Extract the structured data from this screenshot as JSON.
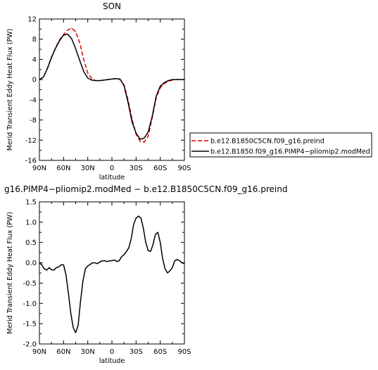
{
  "chart_data": [
    {
      "type": "line",
      "title": "SON",
      "xlabel": "latitude",
      "ylabel": "Merid Transient Eddy Heat Flux (PW)",
      "x": [
        90,
        85,
        80,
        75,
        70,
        65,
        60,
        55,
        50,
        45,
        40,
        35,
        30,
        25,
        20,
        15,
        10,
        5,
        0,
        -5,
        -10,
        -15,
        -20,
        -25,
        -30,
        -35,
        -40,
        -45,
        -50,
        -55,
        -60,
        -65,
        -70,
        -75,
        -80,
        -85,
        -90
      ],
      "xticks": [
        90,
        60,
        30,
        0,
        -30,
        -60,
        -90
      ],
      "xticklabels": [
        "90N",
        "60N",
        "30N",
        "0",
        "30S",
        "60S",
        "90S"
      ],
      "xlim": [
        90,
        -90
      ],
      "ylim": [
        -16,
        12
      ],
      "yticks": [
        -16,
        -12,
        -8,
        -4,
        0,
        4,
        8,
        12
      ],
      "yticklabels": [
        "-16",
        "-12",
        "-8",
        "-4",
        "0",
        "4",
        "8",
        "12"
      ],
      "legend_position": "right",
      "colors": {
        "axes": "#000000",
        "series_red": "#dd0000",
        "series_black": "#000000"
      },
      "series": [
        {
          "name": "b.e12.B1850C5CN.f09_g16.preind",
          "color": "#dd0000",
          "dash": "dashed",
          "values": [
            0,
            0.5,
            2.3,
            4.5,
            6.3,
            7.9,
            8.9,
            9.8,
            10.2,
            9.5,
            7.3,
            4.0,
            1.3,
            0.2,
            -0.2,
            -0.2,
            -0.1,
            0,
            0.1,
            0.2,
            0,
            -1.0,
            -4.0,
            -7.8,
            -10.8,
            -12.2,
            -12.4,
            -11.2,
            -7.6,
            -3.6,
            -1.6,
            -0.8,
            -0.3,
            -0.1,
            0,
            0,
            0
          ]
        },
        {
          "name": "b.e12.B1850.f09_g16.PIMP4−pliomip2.modMed",
          "color": "#000000",
          "dash": "solid",
          "values": [
            0,
            0.5,
            2.2,
            4.4,
            6.2,
            7.7,
            8.8,
            9.0,
            8.1,
            6.1,
            3.8,
            1.6,
            0.3,
            -0.1,
            -0.2,
            -0.2,
            -0.1,
            0,
            0.1,
            0.2,
            0.1,
            -1.2,
            -4.5,
            -8.4,
            -10.6,
            -11.8,
            -11.6,
            -10.4,
            -7.3,
            -3.3,
            -1.3,
            -0.6,
            -0.2,
            0,
            0,
            0,
            0
          ]
        }
      ]
    },
    {
      "type": "line",
      "title": "g16.PIMP4−pliomip2.modMed − b.e12.B1850C5CN.f09_g16.preind",
      "xlabel": "latitude",
      "ylabel": "Merid Transient Eddy Heat Flux (PW)",
      "x": [
        90,
        87,
        84,
        81,
        78,
        75,
        72,
        69,
        66,
        63,
        60,
        57,
        54,
        51,
        48,
        45,
        42,
        39,
        36,
        33,
        30,
        27,
        24,
        21,
        18,
        15,
        12,
        9,
        6,
        3,
        0,
        -3,
        -6,
        -9,
        -12,
        -15,
        -18,
        -21,
        -24,
        -27,
        -30,
        -33,
        -36,
        -39,
        -42,
        -45,
        -48,
        -51,
        -54,
        -57,
        -60,
        -63,
        -66,
        -69,
        -72,
        -75,
        -78,
        -81,
        -84,
        -87,
        -90
      ],
      "xticks": [
        90,
        60,
        30,
        0,
        -30,
        -60,
        -90
      ],
      "xticklabels": [
        "90N",
        "60N",
        "30N",
        "0",
        "30S",
        "60S",
        "90S"
      ],
      "xlim": [
        90,
        -90
      ],
      "ylim": [
        -2.0,
        1.5
      ],
      "yticks": [
        -2.0,
        -1.5,
        -1.0,
        -0.5,
        0.0,
        0.5,
        1.0,
        1.5
      ],
      "yticklabels": [
        "-2.0",
        "-1.5",
        "-1.0",
        "-0.5",
        "0.0",
        "0.5",
        "1.0",
        "1.5"
      ],
      "colors": {
        "series": "#000000"
      },
      "series": [
        {
          "color": "#000000",
          "values": [
            0.0,
            -0.05,
            -0.15,
            -0.18,
            -0.12,
            -0.17,
            -0.18,
            -0.12,
            -0.1,
            -0.05,
            -0.05,
            -0.3,
            -0.75,
            -1.25,
            -1.6,
            -1.72,
            -1.55,
            -0.95,
            -0.45,
            -0.15,
            -0.08,
            -0.04,
            0.0,
            0.0,
            -0.02,
            0.02,
            0.05,
            0.05,
            0.03,
            0.05,
            0.05,
            0.07,
            0.03,
            0.05,
            0.15,
            0.2,
            0.28,
            0.37,
            0.6,
            0.95,
            1.1,
            1.15,
            1.1,
            0.85,
            0.5,
            0.3,
            0.28,
            0.45,
            0.7,
            0.75,
            0.5,
            0.1,
            -0.15,
            -0.25,
            -0.2,
            -0.12,
            0.05,
            0.08,
            0.05,
            0.0,
            -0.02
          ]
        }
      ]
    }
  ]
}
